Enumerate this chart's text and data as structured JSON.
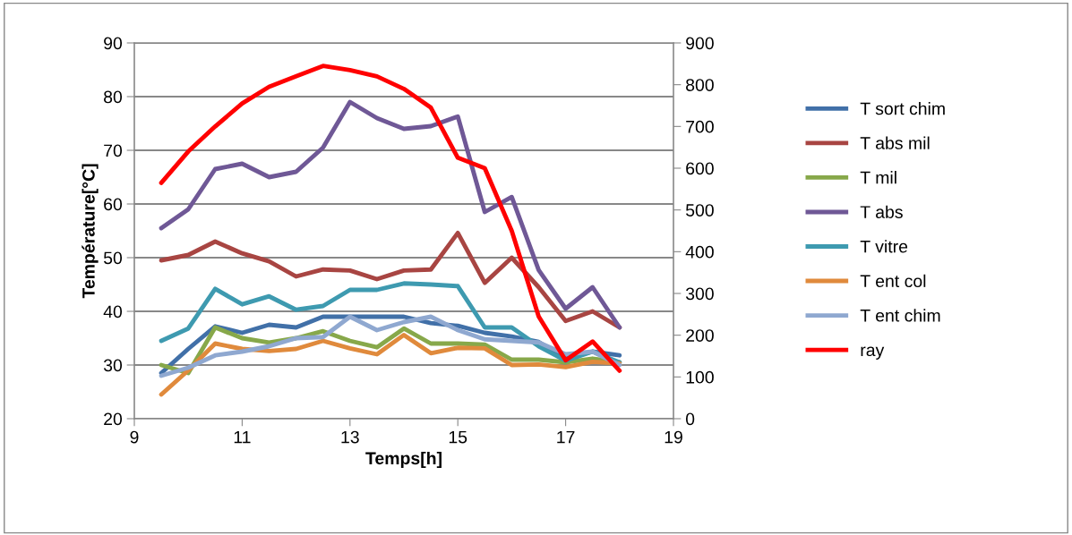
{
  "chart_data": {
    "type": "line",
    "xlabel": "Temps[h]",
    "ylabel": "Température[°C]",
    "x": [
      9.5,
      10,
      10.5,
      11,
      11.5,
      12,
      12.5,
      13,
      13.5,
      14,
      14.5,
      15,
      15.5,
      16,
      16.5,
      17,
      17.5,
      18
    ],
    "xlim": [
      9,
      19
    ],
    "xticks": [
      9,
      11,
      13,
      15,
      17,
      19
    ],
    "ylim": [
      20,
      90
    ],
    "yticks": [
      20,
      30,
      40,
      50,
      60,
      70,
      80,
      90
    ],
    "y2lim": [
      0,
      900
    ],
    "y2ticks": [
      0,
      100,
      200,
      300,
      400,
      500,
      600,
      700,
      800,
      900
    ],
    "grid": "y",
    "legend": "right",
    "marker": "none",
    "line_style": "solid",
    "series": [
      {
        "name": "T sort chim",
        "color": "#4170a8",
        "values": [
          28.5,
          33,
          37.2,
          36,
          37.5,
          37,
          39,
          39,
          39,
          39,
          37.8,
          37.3,
          36,
          35.3,
          34.3,
          31.2,
          32.5,
          31.8
        ]
      },
      {
        "name": "T abs mil",
        "color": "#a84542",
        "values": [
          49.5,
          50.5,
          53,
          50.8,
          49.3,
          46.5,
          47.8,
          47.6,
          46,
          47.6,
          47.8,
          54.6,
          45.3,
          50,
          44.5,
          38.2,
          40,
          37
        ]
      },
      {
        "name": "T mil",
        "color": "#87a84a",
        "values": [
          30,
          28.5,
          37,
          35,
          34.2,
          35,
          36.3,
          34.5,
          33.3,
          36.8,
          34,
          34,
          33.8,
          31,
          31,
          30.5,
          31.2,
          30.5
        ]
      },
      {
        "name": "T abs",
        "color": "#6f5896",
        "values": [
          55.5,
          59,
          66.5,
          67.5,
          65,
          66,
          70.5,
          79,
          76,
          74,
          74.5,
          76.3,
          58.5,
          61.3,
          47.7,
          40.5,
          44.5,
          37
        ]
      },
      {
        "name": "T vitre",
        "color": "#3e9ab0",
        "values": [
          34.5,
          36.8,
          44.2,
          41.3,
          42.8,
          40.3,
          41,
          44,
          44,
          45.2,
          45,
          44.7,
          37,
          37,
          33.5,
          30.8,
          32.5,
          30.5
        ]
      },
      {
        "name": "T ent col",
        "color": "#e08a3c",
        "values": [
          24.5,
          29,
          34,
          33,
          32.6,
          33,
          34.5,
          33.1,
          32,
          35.6,
          32.2,
          33.2,
          33.1,
          30,
          30.1,
          29.6,
          30.6,
          30.3
        ]
      },
      {
        "name": "T ent chim",
        "color": "#8fa8d0",
        "values": [
          28,
          29.5,
          31.8,
          32.5,
          33.5,
          35,
          35.2,
          39,
          36.5,
          38,
          39,
          36.5,
          34.8,
          34.5,
          34.2,
          32,
          32.5,
          30
        ]
      },
      {
        "name": "ray",
        "color": "#ff0000",
        "axis": "y2",
        "values": [
          565,
          640,
          700,
          755,
          795,
          820,
          845,
          835,
          820,
          790,
          745,
          625,
          600,
          450,
          245,
          140,
          185,
          115
        ]
      }
    ]
  }
}
